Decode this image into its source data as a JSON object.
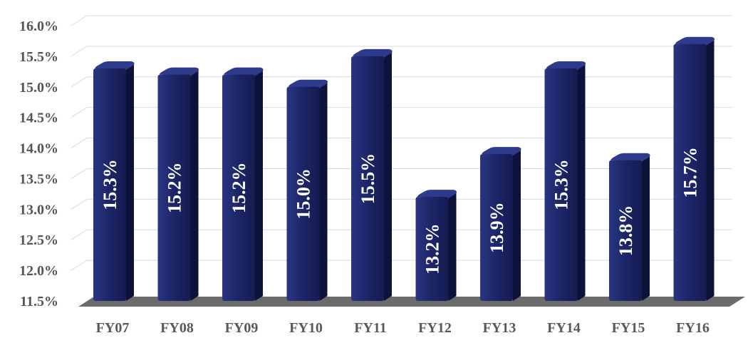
{
  "chart_data": {
    "type": "bar",
    "categories": [
      "FY07",
      "FY08",
      "FY09",
      "FY10",
      "FY11",
      "FY12",
      "FY13",
      "FY14",
      "FY15",
      "FY16"
    ],
    "values": [
      15.3,
      15.2,
      15.2,
      15.0,
      15.5,
      13.2,
      13.9,
      15.3,
      13.8,
      15.7
    ],
    "data_labels": [
      "15.3%",
      "15.2%",
      "15.2%",
      "15.0%",
      "15.5%",
      "13.2%",
      "13.9%",
      "15.3%",
      "13.8%",
      "15.7%"
    ],
    "yticks": [
      11.5,
      12.0,
      12.5,
      13.0,
      13.5,
      14.0,
      14.5,
      15.0,
      15.5,
      16.0
    ],
    "ytick_labels": [
      "11.5%",
      "12.0%",
      "12.5%",
      "13.0%",
      "13.5%",
      "14.0%",
      "14.5%",
      "15.0%",
      "15.5%",
      "16.0%"
    ],
    "ylim": [
      11.5,
      16.0
    ],
    "title": "",
    "xlabel": "",
    "ylabel": "",
    "grid": true,
    "bar_color": "#1c2566",
    "bar_side_color": "#0d1238",
    "floor_color": "#6b6b6b"
  }
}
